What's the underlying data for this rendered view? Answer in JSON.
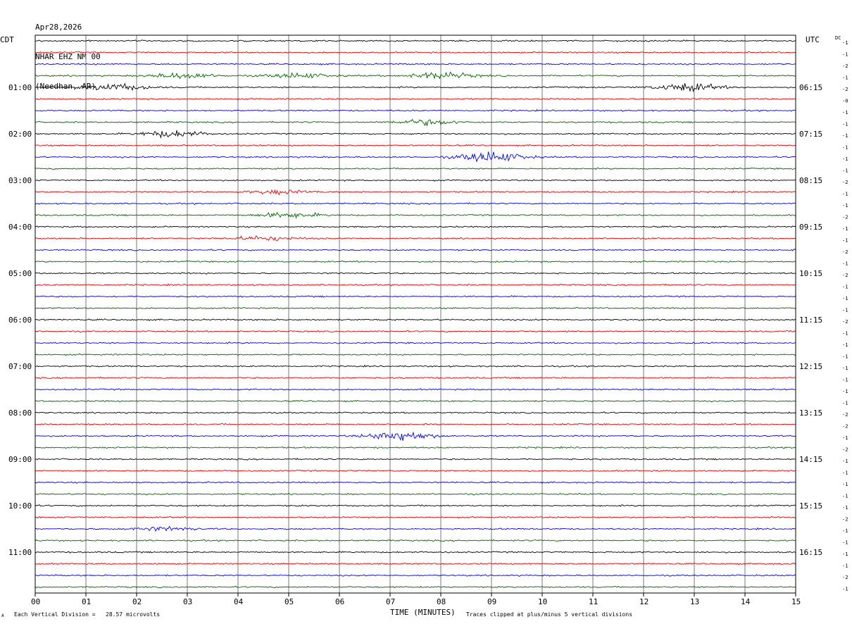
{
  "header": {
    "date": "Apr28,2026",
    "station": "NHAR EHZ NM 00",
    "location": "(Needhan, AR)"
  },
  "left_tz": "CDT",
  "right_tz": "UTC",
  "dc_label": "DC",
  "footer": {
    "mark": "A",
    "scale": "Each Vertical Division =   28.57 microvolts",
    "xlabel": "TIME (MINUTES)",
    "clip": "Traces clipped at plus/minus 5 vertical divisions"
  },
  "chart_data": {
    "type": "line",
    "title": "",
    "xlabel": "TIME (MINUTES)",
    "ylabel": "",
    "xlim": [
      0,
      15
    ],
    "x_ticks": [
      "00",
      "01",
      "02",
      "03",
      "04",
      "05",
      "06",
      "07",
      "08",
      "09",
      "10",
      "11",
      "12",
      "13",
      "14",
      "15"
    ],
    "grid": "vertical lines every minute",
    "trace_colors": [
      "#000000",
      "#e00000",
      "#0000e0",
      "#006400"
    ],
    "trace_count": 48,
    "left_time_labels": [
      "01:00",
      "02:00",
      "03:00",
      "04:00",
      "05:00",
      "06:00",
      "07:00",
      "08:00",
      "09:00",
      "10:00",
      "11:00"
    ],
    "right_time_labels": [
      "06:15",
      "07:15",
      "08:15",
      "09:15",
      "10:15",
      "11:15",
      "12:15",
      "13:15",
      "14:15",
      "15:15",
      "16:15"
    ],
    "dc_offsets": [
      "-1",
      "-1",
      "-2",
      "-1",
      "-2",
      "-0",
      "-1",
      "-1",
      "-1",
      "-1",
      "-1",
      "-1",
      "-2",
      "-1",
      "-1",
      "-2",
      "-1",
      "-1",
      "-2",
      "-1",
      "-2",
      "-1",
      "-1",
      "-1",
      "-2",
      "-1",
      "-1",
      "-1",
      "-1",
      "-1",
      "-1",
      "-1",
      "-2",
      "-2",
      "-1",
      "-2",
      "-1",
      "-1",
      "-1",
      "-1",
      "-1",
      "-2",
      "-1",
      "-1",
      "-1",
      "-1",
      "-2",
      "-1"
    ],
    "events": [
      {
        "trace": 3,
        "minute": 2.9,
        "amp": 0.5
      },
      {
        "trace": 3,
        "minute": 5.2,
        "amp": 0.45
      },
      {
        "trace": 3,
        "minute": 8.0,
        "amp": 0.6
      },
      {
        "trace": 4,
        "minute": 1.6,
        "amp": 0.6
      },
      {
        "trace": 4,
        "minute": 12.9,
        "amp": 0.7
      },
      {
        "trace": 7,
        "minute": 7.7,
        "amp": 0.5
      },
      {
        "trace": 8,
        "minute": 2.7,
        "amp": 0.6
      },
      {
        "trace": 10,
        "minute": 9.0,
        "amp": 1.0
      },
      {
        "trace": 13,
        "minute": 4.8,
        "amp": 0.35
      },
      {
        "trace": 15,
        "minute": 5.0,
        "amp": 0.45
      },
      {
        "trace": 17,
        "minute": 4.5,
        "amp": 0.4
      },
      {
        "trace": 34,
        "minute": 7.2,
        "amp": 0.9
      },
      {
        "trace": 42,
        "minute": 2.5,
        "amp": 0.35
      }
    ]
  }
}
